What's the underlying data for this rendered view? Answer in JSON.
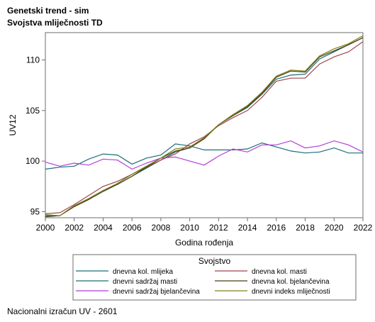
{
  "header": {
    "title_line1": "Genetski trend - sim",
    "title_line2": "Svojstva mliječnosti TD"
  },
  "footer": {
    "note": "Nacionalni izračun UV - 2601"
  },
  "chart_data": {
    "type": "line",
    "xlabel": "Godina rođenja",
    "ylabel": "UV12",
    "xlim": [
      2000,
      2022
    ],
    "ylim": [
      94.4,
      112.7
    ],
    "xticks": [
      2000,
      2002,
      2004,
      2006,
      2008,
      2010,
      2012,
      2014,
      2016,
      2018,
      2020,
      2022
    ],
    "yticks": [
      95,
      100,
      105,
      110
    ],
    "grid": false,
    "legend": {
      "title": "Svojstvo",
      "position": "bottom",
      "columns": 2
    },
    "x": [
      2000,
      2001,
      2002,
      2003,
      2004,
      2005,
      2006,
      2007,
      2008,
      2009,
      2010,
      2011,
      2012,
      2013,
      2014,
      2015,
      2016,
      2017,
      2018,
      2019,
      2020,
      2021,
      2022
    ],
    "series": [
      {
        "name": "dnevna kol. mlijeka",
        "color": "#1a6e78",
        "values": [
          94.6,
          94.6,
          95.5,
          96.2,
          97.1,
          97.7,
          98.5,
          99.3,
          100.1,
          100.9,
          101.3,
          102.3,
          103.6,
          104.5,
          105.3,
          106.6,
          108.1,
          108.5,
          108.6,
          110.1,
          110.8,
          111.5,
          112.2
        ]
      },
      {
        "name": "dnevna kol. masti",
        "color": "#a0464b",
        "values": [
          94.8,
          94.9,
          95.7,
          96.6,
          97.5,
          98.0,
          98.7,
          99.4,
          100.1,
          100.7,
          101.7,
          102.4,
          103.5,
          104.3,
          105.0,
          106.3,
          107.9,
          108.2,
          108.2,
          109.6,
          110.3,
          110.8,
          111.8
        ]
      },
      {
        "name": "dnevni sadržaj masti",
        "color": "#1a6e78",
        "values": [
          99.2,
          99.4,
          99.5,
          100.2,
          100.7,
          100.6,
          99.7,
          100.3,
          100.6,
          101.7,
          101.5,
          101.1,
          101.1,
          101.1,
          101.2,
          101.8,
          101.4,
          101.0,
          100.8,
          100.9,
          101.3,
          100.8,
          100.8
        ]
      },
      {
        "name": "dnevna kol. bjelančevina",
        "color": "#4a3d12",
        "values": [
          94.5,
          94.6,
          95.5,
          96.2,
          97.0,
          97.7,
          98.5,
          99.4,
          100.3,
          101.0,
          101.3,
          102.2,
          103.6,
          104.5,
          105.4,
          106.7,
          108.3,
          108.9,
          108.8,
          110.3,
          110.9,
          111.5,
          112.2
        ]
      },
      {
        "name": "dnevni sadržaj bjelančevina",
        "color": "#b23fd8",
        "values": [
          99.9,
          99.5,
          99.8,
          99.6,
          100.2,
          100.1,
          99.2,
          99.8,
          100.3,
          100.4,
          100.0,
          99.6,
          100.5,
          101.2,
          100.9,
          101.6,
          101.6,
          102.0,
          101.3,
          101.5,
          102.0,
          101.6,
          100.9
        ]
      },
      {
        "name": "dnevni indeks mliječnosti",
        "color": "#7f7f1a",
        "values": [
          94.7,
          94.6,
          95.6,
          96.3,
          97.1,
          97.8,
          98.7,
          99.5,
          100.3,
          101.2,
          101.4,
          102.3,
          103.6,
          104.6,
          105.5,
          106.8,
          108.4,
          109.0,
          108.9,
          110.4,
          111.1,
          111.6,
          112.4
        ]
      }
    ]
  }
}
